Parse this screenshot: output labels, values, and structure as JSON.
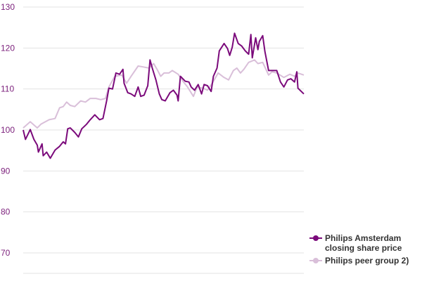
{
  "chart_data": {
    "type": "line",
    "title": "",
    "xlabel": "",
    "ylabel": "",
    "xlim": [
      0,
      99.6
    ],
    "ylim": [
      65,
      130
    ],
    "yticks": [
      70,
      80,
      90,
      100,
      110,
      120,
      130
    ],
    "grid": true,
    "legend_placement": "bottom-right",
    "series": [
      {
        "name": "Philips Amsterdam closing share price",
        "color": "#7b0a7b",
        "points": [
          [
            0,
            100.0
          ],
          [
            0.8,
            97.7
          ],
          [
            2.5,
            100.1
          ],
          [
            3.8,
            97.7
          ],
          [
            5,
            96.3
          ],
          [
            5.4,
            94.6
          ],
          [
            6.7,
            96.6
          ],
          [
            7.1,
            93.7
          ],
          [
            8.3,
            94.6
          ],
          [
            9.6,
            93.1
          ],
          [
            11.3,
            95.1
          ],
          [
            12.9,
            96.0
          ],
          [
            14.2,
            97.1
          ],
          [
            15,
            96.6
          ],
          [
            15.8,
            100.3
          ],
          [
            16.7,
            100.5
          ],
          [
            18.3,
            99.4
          ],
          [
            19.6,
            98.3
          ],
          [
            20.8,
            100.3
          ],
          [
            22.5,
            101.4
          ],
          [
            23.8,
            102.5
          ],
          [
            25.4,
            103.7
          ],
          [
            27.1,
            102.5
          ],
          [
            28.3,
            102.8
          ],
          [
            29.6,
            107.1
          ],
          [
            30.4,
            110.2
          ],
          [
            31.7,
            110.0
          ],
          [
            32.9,
            113.9
          ],
          [
            34.2,
            113.6
          ],
          [
            35.4,
            114.8
          ],
          [
            35.8,
            111.4
          ],
          [
            37.1,
            109.1
          ],
          [
            38.3,
            108.8
          ],
          [
            39.6,
            108.2
          ],
          [
            40.8,
            110.5
          ],
          [
            41.7,
            108.2
          ],
          [
            42.9,
            108.5
          ],
          [
            44.2,
            110.8
          ],
          [
            45,
            117.1
          ],
          [
            45.8,
            115.1
          ],
          [
            47.1,
            112.2
          ],
          [
            48.3,
            108.8
          ],
          [
            49.2,
            107.4
          ],
          [
            50.4,
            107.1
          ],
          [
            52.1,
            109.1
          ],
          [
            53.3,
            109.7
          ],
          [
            54.6,
            108.5
          ],
          [
            55,
            107.1
          ],
          [
            55.8,
            113.1
          ],
          [
            57.5,
            111.9
          ],
          [
            58.8,
            111.7
          ],
          [
            59.6,
            110.5
          ],
          [
            60.8,
            109.7
          ],
          [
            62.1,
            111.1
          ],
          [
            63.3,
            108.8
          ],
          [
            64.2,
            111.1
          ],
          [
            65.4,
            110.8
          ],
          [
            66.7,
            109.4
          ],
          [
            67.5,
            113.1
          ],
          [
            68.8,
            115.1
          ],
          [
            69.6,
            119.3
          ],
          [
            71.3,
            121.1
          ],
          [
            72.5,
            119.9
          ],
          [
            73.3,
            118.2
          ],
          [
            74.2,
            120.2
          ],
          [
            75,
            123.6
          ],
          [
            76.3,
            121.1
          ],
          [
            77.5,
            120.5
          ],
          [
            78.8,
            119.3
          ],
          [
            80,
            118.5
          ],
          [
            80.8,
            123.3
          ],
          [
            81.3,
            117.6
          ],
          [
            82.5,
            122.5
          ],
          [
            83.3,
            119.6
          ],
          [
            83.8,
            121.6
          ],
          [
            85,
            123.0
          ],
          [
            85.8,
            119.1
          ],
          [
            87.1,
            114.5
          ],
          [
            88.8,
            114.5
          ],
          [
            90,
            114.5
          ],
          [
            91.3,
            111.7
          ],
          [
            92.5,
            110.5
          ],
          [
            93.8,
            112.2
          ],
          [
            95,
            112.5
          ],
          [
            96.3,
            111.7
          ],
          [
            97.1,
            114.2
          ],
          [
            97.5,
            110.2
          ],
          [
            99.6,
            108.8
          ]
        ]
      },
      {
        "name": "Philips peer group 2)",
        "color": "#d9bfd9",
        "points": [
          [
            0,
            100.5
          ],
          [
            2.5,
            102.0
          ],
          [
            5,
            100.5
          ],
          [
            6.3,
            101.4
          ],
          [
            9.2,
            102.5
          ],
          [
            11.3,
            102.8
          ],
          [
            12.9,
            105.4
          ],
          [
            14.2,
            105.7
          ],
          [
            15.4,
            106.8
          ],
          [
            16.7,
            106.0
          ],
          [
            18.3,
            105.7
          ],
          [
            20.4,
            107.1
          ],
          [
            22.1,
            106.8
          ],
          [
            23.8,
            107.7
          ],
          [
            25.8,
            107.7
          ],
          [
            27.5,
            107.4
          ],
          [
            29.2,
            107.7
          ],
          [
            30.4,
            110.5
          ],
          [
            32.5,
            113.1
          ],
          [
            35,
            113.4
          ],
          [
            36.7,
            111.4
          ],
          [
            38.3,
            113.1
          ],
          [
            40.8,
            115.6
          ],
          [
            42.5,
            115.4
          ],
          [
            44.6,
            115.1
          ],
          [
            46.3,
            116.2
          ],
          [
            47.5,
            114.8
          ],
          [
            48.8,
            113.1
          ],
          [
            50,
            113.9
          ],
          [
            51.7,
            113.9
          ],
          [
            52.9,
            114.5
          ],
          [
            55,
            113.6
          ],
          [
            56.7,
            111.9
          ],
          [
            58.3,
            110.5
          ],
          [
            60.4,
            108.2
          ],
          [
            61.7,
            110.5
          ],
          [
            63.8,
            110.2
          ],
          [
            65.4,
            109.7
          ],
          [
            67.1,
            111.4
          ],
          [
            69.2,
            113.9
          ],
          [
            71.3,
            112.8
          ],
          [
            72.9,
            112.2
          ],
          [
            74.6,
            114.5
          ],
          [
            75.8,
            115.1
          ],
          [
            77.1,
            113.9
          ],
          [
            78.3,
            114.8
          ],
          [
            80,
            116.5
          ],
          [
            82.1,
            117.1
          ],
          [
            83.3,
            116.2
          ],
          [
            85,
            116.5
          ],
          [
            87.1,
            113.4
          ],
          [
            88.3,
            114.2
          ],
          [
            90,
            113.9
          ],
          [
            92.5,
            112.8
          ],
          [
            94.6,
            113.6
          ],
          [
            96.3,
            113.1
          ],
          [
            97.5,
            113.9
          ],
          [
            99.6,
            113.4
          ]
        ]
      }
    ]
  },
  "legend": {
    "items": [
      {
        "label_line1": "Philips Amsterdam",
        "label_line2": "closing share price"
      },
      {
        "label_line1": "Philips peer group 2)"
      }
    ]
  }
}
